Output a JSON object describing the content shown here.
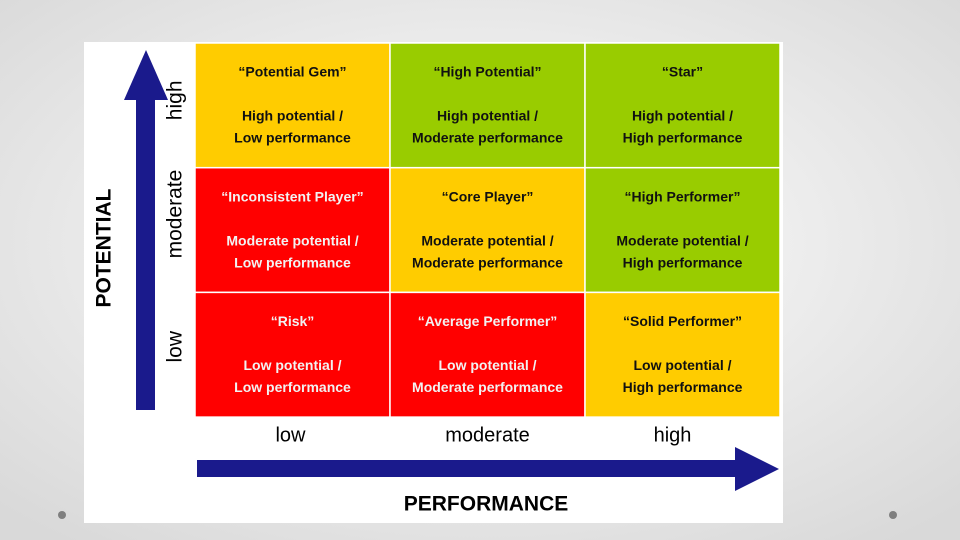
{
  "axes": {
    "y_title": "POTENTIAL",
    "y_levels": [
      "high",
      "moderate",
      "low"
    ],
    "x_title": "PERFORMANCE",
    "x_levels": [
      "low",
      "moderate",
      "high"
    ]
  },
  "grid": {
    "rows": [
      [
        {
          "title": "“Potential Gem”",
          "lines": [
            "High potential /",
            "Low performance"
          ]
        },
        {
          "title": "“High Potential”",
          "lines": [
            "High potential /",
            "Moderate performance"
          ]
        },
        {
          "title": "“Star”",
          "lines": [
            "High potential /",
            "High performance"
          ]
        }
      ],
      [
        {
          "title": "“Inconsistent Player”",
          "lines": [
            "Moderate potential /",
            "Low performance"
          ]
        },
        {
          "title": "“Core Player”",
          "lines": [
            "Moderate potential /",
            "Moderate performance"
          ]
        },
        {
          "title": "“High Performer”",
          "lines": [
            "Moderate potential /",
            "High performance"
          ]
        }
      ],
      [
        {
          "title": "“Risk”",
          "lines": [
            "Low potential /",
            "Low performance"
          ]
        },
        {
          "title": "“Average Performer”",
          "lines": [
            "Low potential /",
            "Moderate performance"
          ]
        },
        {
          "title": "“Solid Performer”",
          "lines": [
            "Low potential /",
            "High performance"
          ]
        }
      ]
    ]
  }
}
